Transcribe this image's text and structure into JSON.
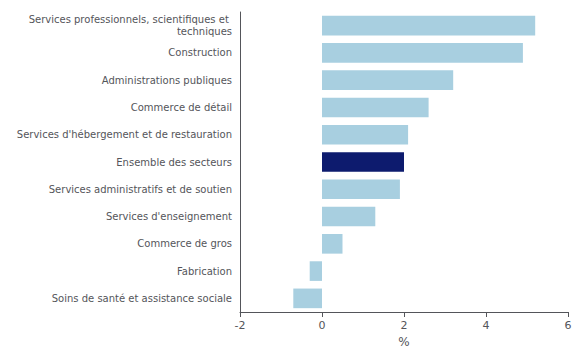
{
  "chart_data": {
    "type": "bar",
    "orientation": "horizontal",
    "categories": [
      "Soins de santé et assistance sociale",
      "Fabrication",
      "Commerce de gros",
      "Services d'enseignement",
      "Services administratifs et de soutien",
      "Ensemble des secteurs",
      "Services d'hébergement et de restauration",
      "Commerce de détail",
      "Administrations publiques",
      "Construction",
      "Services professionnels, scientifiques et techniques"
    ],
    "values": [
      -0.7,
      -0.3,
      0.5,
      1.3,
      1.9,
      2.0,
      2.1,
      2.6,
      3.2,
      4.9,
      5.2
    ],
    "colors": [
      "#a8cfe0",
      "#a8cfe0",
      "#a8cfe0",
      "#a8cfe0",
      "#a8cfe0",
      "#0d1b6e",
      "#a8cfe0",
      "#a8cfe0",
      "#a8cfe0",
      "#a8cfe0",
      "#a8cfe0"
    ],
    "xlabel": "%",
    "xlim": [
      -2,
      6
    ],
    "xticks": [
      -2,
      0,
      2,
      4,
      6
    ],
    "grid": false
  }
}
